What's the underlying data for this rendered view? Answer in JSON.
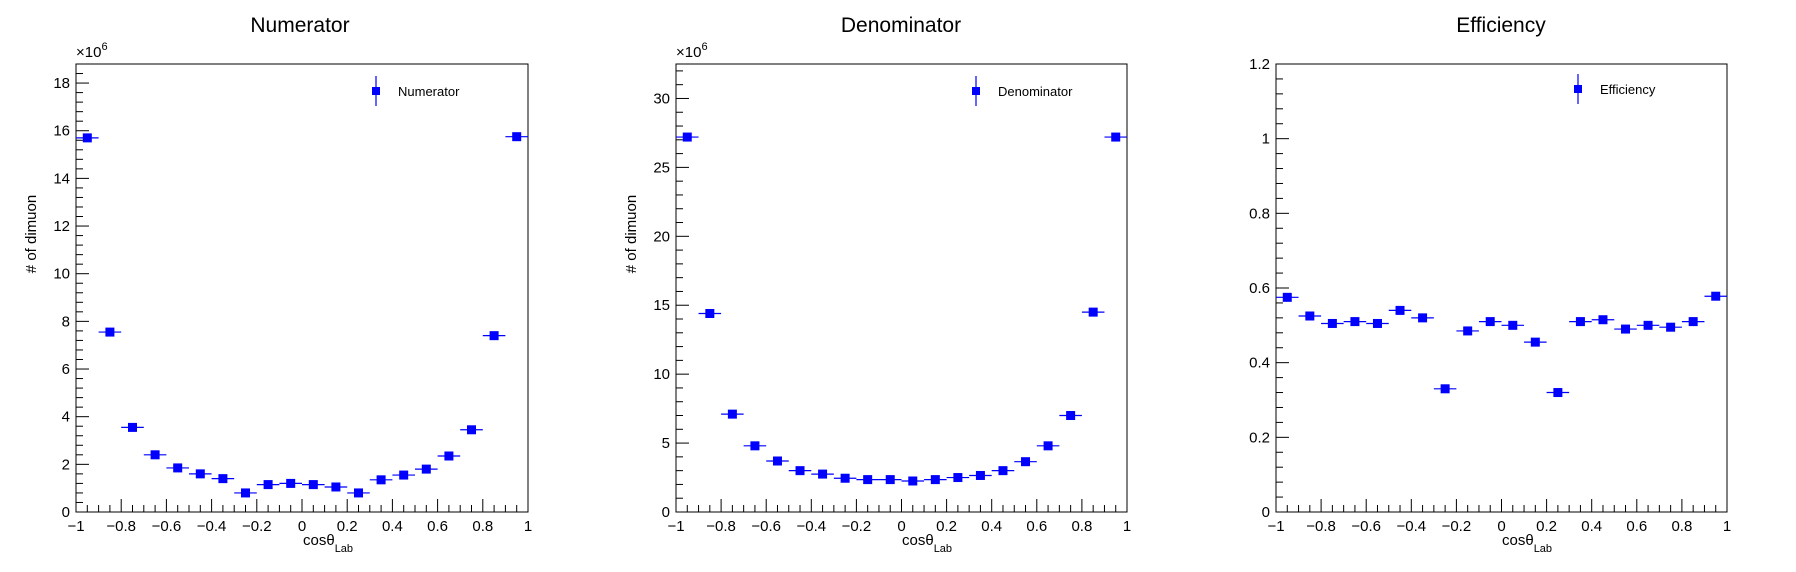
{
  "chart_data": [
    {
      "type": "scatter",
      "title": "Numerator",
      "xlabel": "cosθ",
      "xlabel_sub": "Lab",
      "ylabel": "# of dimuon",
      "multiplier_label": "×10",
      "multiplier_exp": "6",
      "xlim": [
        -1,
        1
      ],
      "ylim": [
        0,
        18.8
      ],
      "xticks": [
        -1,
        -0.8,
        -0.6,
        -0.4,
        -0.2,
        0,
        0.2,
        0.4,
        0.6,
        0.8,
        1
      ],
      "xtick_labels": [
        "−1",
        "−0.8",
        "−0.6",
        "−0.4",
        "−0.2",
        "0",
        "0.2",
        "0.4",
        "0.6",
        "0.8",
        "1"
      ],
      "yticks": [
        0,
        2,
        4,
        6,
        8,
        10,
        12,
        14,
        16,
        18
      ],
      "ytick_labels": [
        "0",
        "2",
        "4",
        "6",
        "8",
        "10",
        "12",
        "14",
        "16",
        "18"
      ],
      "legend_position": "top-right",
      "marker_color": "#0000ff",
      "grid": false,
      "series": [
        {
          "name": "Numerator",
          "x": [
            -0.95,
            -0.85,
            -0.75,
            -0.65,
            -0.55,
            -0.45,
            -0.35,
            -0.25,
            -0.15,
            -0.05,
            0.05,
            0.15,
            0.25,
            0.35,
            0.45,
            0.55,
            0.65,
            0.75,
            0.85,
            0.95
          ],
          "y": [
            15.7,
            7.55,
            3.55,
            2.4,
            1.85,
            1.6,
            1.4,
            0.8,
            1.15,
            1.2,
            1.15,
            1.05,
            0.8,
            1.35,
            1.55,
            1.8,
            2.35,
            3.45,
            7.4,
            15.75
          ]
        }
      ]
    },
    {
      "type": "scatter",
      "title": "Denominator",
      "xlabel": "cosθ",
      "xlabel_sub": "Lab",
      "ylabel": "# of dimuon",
      "multiplier_label": "×10",
      "multiplier_exp": "6",
      "xlim": [
        -1,
        1
      ],
      "ylim": [
        0,
        32.5
      ],
      "xticks": [
        -1,
        -0.8,
        -0.6,
        -0.4,
        -0.2,
        0,
        0.2,
        0.4,
        0.6,
        0.8,
        1
      ],
      "xtick_labels": [
        "−1",
        "−0.8",
        "−0.6",
        "−0.4",
        "−0.2",
        "0",
        "0.2",
        "0.4",
        "0.6",
        "0.8",
        "1"
      ],
      "yticks": [
        0,
        5,
        10,
        15,
        20,
        25,
        30
      ],
      "ytick_labels": [
        "0",
        "5",
        "10",
        "15",
        "20",
        "25",
        "30"
      ],
      "legend_position": "top-right",
      "marker_color": "#0000ff",
      "grid": false,
      "series": [
        {
          "name": "Denominator",
          "x": [
            -0.95,
            -0.85,
            -0.75,
            -0.65,
            -0.55,
            -0.45,
            -0.35,
            -0.25,
            -0.15,
            -0.05,
            0.05,
            0.15,
            0.25,
            0.35,
            0.45,
            0.55,
            0.65,
            0.75,
            0.85,
            0.95
          ],
          "y": [
            27.2,
            14.4,
            7.1,
            4.8,
            3.7,
            3.0,
            2.75,
            2.45,
            2.35,
            2.35,
            2.25,
            2.35,
            2.5,
            2.65,
            3.0,
            3.65,
            4.8,
            7.0,
            14.5,
            27.2
          ]
        }
      ]
    },
    {
      "type": "scatter",
      "title": "Efficiency",
      "xlabel": "cosθ",
      "xlabel_sub": "Lab",
      "ylabel": "",
      "xlim": [
        -1,
        1
      ],
      "ylim": [
        0,
        1.2
      ],
      "xticks": [
        -1,
        -0.8,
        -0.6,
        -0.4,
        -0.2,
        0,
        0.2,
        0.4,
        0.6,
        0.8,
        1
      ],
      "xtick_labels": [
        "−1",
        "−0.8",
        "−0.6",
        "−0.4",
        "−0.2",
        "0",
        "0.2",
        "0.4",
        "0.6",
        "0.8",
        "1"
      ],
      "yticks": [
        0,
        0.2,
        0.4,
        0.6,
        0.8,
        1,
        1.2
      ],
      "ytick_labels": [
        "0",
        "0.2",
        "0.4",
        "0.6",
        "0.8",
        "1",
        "1.2"
      ],
      "legend_position": "top-right",
      "marker_color": "#0000ff",
      "grid": false,
      "series": [
        {
          "name": "Efficiency",
          "x": [
            -0.95,
            -0.85,
            -0.75,
            -0.65,
            -0.55,
            -0.45,
            -0.35,
            -0.25,
            -0.15,
            -0.05,
            0.05,
            0.15,
            0.25,
            0.35,
            0.45,
            0.55,
            0.65,
            0.75,
            0.85,
            0.95
          ],
          "y": [
            0.575,
            0.525,
            0.505,
            0.51,
            0.505,
            0.54,
            0.52,
            0.33,
            0.485,
            0.51,
            0.5,
            0.455,
            0.32,
            0.51,
            0.515,
            0.49,
            0.5,
            0.495,
            0.51,
            0.578
          ]
        }
      ]
    }
  ]
}
